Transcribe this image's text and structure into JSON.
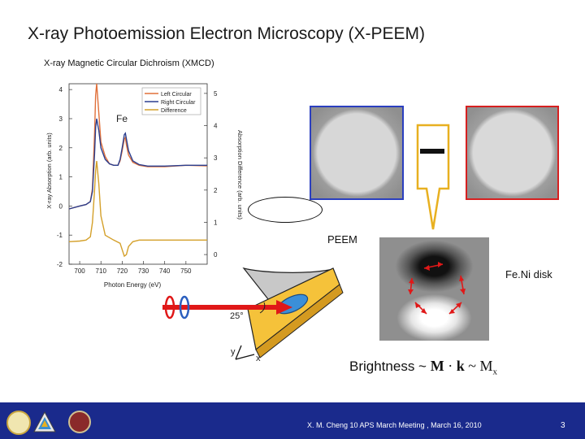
{
  "title": "X-ray Photoemission Electron Microscopy (X-PEEM)",
  "subtitle": "X-ray Magnetic Circular Dichroism (XMCD)",
  "labels": {
    "fe": "Fe",
    "peem": "PEEM",
    "disk": "Fe.Ni disk",
    "angle": "25°",
    "axis_y": "y",
    "axis_x": "x"
  },
  "brightness": {
    "prefix": "Brightness ~ ",
    "m": "M",
    "dot": " · ",
    "k": "k",
    "tilde": " ~ ",
    "mx": "M",
    "sub": "x"
  },
  "footer": {
    "citation": "X. M. Cheng 10 APS March Meeting , March 16, 2010",
    "page": "3"
  },
  "colors": {
    "left_circular": "#e0703a",
    "right_circular": "#2b3f8f",
    "difference": "#d4a02a",
    "footer_bg": "#1a2a8c",
    "beam": "#e01818"
  },
  "chart_data": {
    "type": "line",
    "xlabel": "Photon Energy (eV)",
    "ylabel": "X-ray Absorption (arb. units)",
    "ylabel_right": "Absorption Difference (arb. units)",
    "xlim": [
      695,
      760
    ],
    "ylim": [
      -2,
      4.2
    ],
    "ylim_right": [
      -0.3,
      5.3
    ],
    "x_ticks": [
      700,
      710,
      720,
      730,
      740,
      750
    ],
    "y_ticks": [
      -2,
      -1,
      0,
      1,
      2,
      3,
      4
    ],
    "y_ticks_right": [
      0,
      1,
      2,
      3,
      4,
      5
    ],
    "legend_position": "top-right",
    "series": [
      {
        "name": "Left Circular",
        "axis": "left",
        "x": [
          695,
          700,
          703,
          705,
          706,
          707,
          707.5,
          708,
          709,
          710,
          712,
          714,
          716,
          718,
          719,
          720,
          721,
          721.5,
          722,
          723,
          725,
          728,
          732,
          740,
          750,
          760
        ],
        "y": [
          -0.1,
          0.0,
          0.05,
          0.15,
          0.6,
          2.5,
          3.8,
          4.2,
          3.2,
          2.2,
          1.7,
          1.45,
          1.4,
          1.4,
          1.55,
          1.9,
          2.3,
          2.35,
          2.1,
          1.75,
          1.5,
          1.4,
          1.35,
          1.35,
          1.4,
          1.38
        ]
      },
      {
        "name": "Right Circular",
        "axis": "left",
        "x": [
          695,
          700,
          703,
          705,
          706,
          707,
          707.5,
          708,
          709,
          710,
          712,
          714,
          716,
          718,
          719,
          720,
          721,
          721.5,
          722,
          723,
          725,
          728,
          732,
          740,
          750,
          760
        ],
        "y": [
          -0.1,
          0.0,
          0.05,
          0.15,
          0.5,
          1.8,
          2.7,
          3.0,
          2.6,
          2.0,
          1.6,
          1.45,
          1.4,
          1.4,
          1.6,
          2.0,
          2.45,
          2.5,
          2.3,
          1.9,
          1.55,
          1.42,
          1.37,
          1.37,
          1.4,
          1.4
        ]
      },
      {
        "name": "Difference",
        "axis": "right",
        "x": [
          695,
          700,
          703,
          705,
          706,
          707,
          707.5,
          708,
          709,
          710,
          712,
          716,
          719,
          720,
          721,
          722,
          723,
          725,
          728,
          735,
          745,
          760
        ],
        "y": [
          0.4,
          0.42,
          0.45,
          0.55,
          1.0,
          2.0,
          2.6,
          2.9,
          2.2,
          1.2,
          0.6,
          0.45,
          0.35,
          0.15,
          -0.05,
          0.0,
          0.25,
          0.4,
          0.45,
          0.45,
          0.45,
          0.45
        ]
      }
    ]
  }
}
